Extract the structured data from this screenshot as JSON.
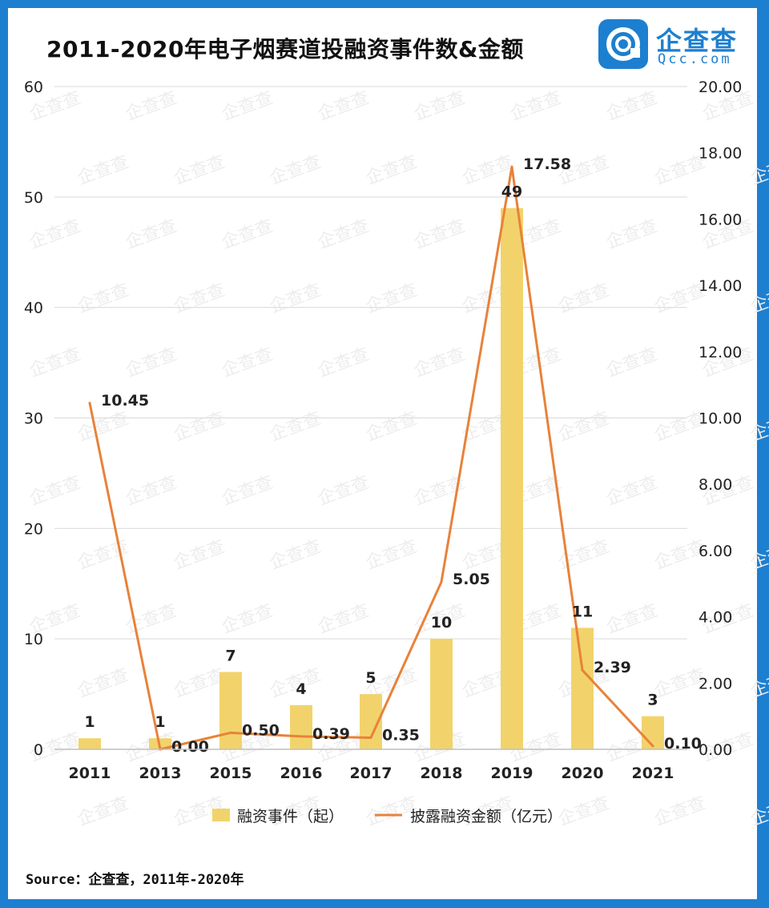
{
  "title": "2011-2020年电子烟赛道投融资事件数&金额",
  "logo": {
    "name": "企查查",
    "sub": "Qcc.com"
  },
  "watermark": "企查查",
  "source": "Source：企查查，2011年-2020年",
  "colors": {
    "bar": "#f2d36b",
    "line": "#e8823a",
    "frame": "#1d7fd0",
    "grid": "#d9d9d9"
  },
  "chart_data": {
    "type": "bar",
    "title": "2011-2020年电子烟赛道投融资事件数&金额",
    "categories": [
      "2011",
      "2013",
      "2015",
      "2016",
      "2017",
      "2018",
      "2019",
      "2020",
      "2021"
    ],
    "series": [
      {
        "name": "融资事件（起）",
        "type": "bar",
        "axis": "left",
        "values": [
          1,
          1,
          7,
          4,
          5,
          10,
          49,
          11,
          3
        ]
      },
      {
        "name": "披露融资金额（亿元）",
        "type": "line",
        "axis": "right",
        "values": [
          10.45,
          0.0,
          0.5,
          0.39,
          0.35,
          5.05,
          17.58,
          2.39,
          0.1
        ]
      }
    ],
    "bar_labels": [
      "1",
      "1",
      "7",
      "4",
      "5",
      "10",
      "49",
      "11",
      "3"
    ],
    "line_labels": [
      "10.45",
      "0.00",
      "0.50",
      "0.39",
      "0.35",
      "5.05",
      "17.58",
      "2.39",
      "0.10"
    ],
    "y_left": {
      "lim": [
        0,
        60
      ],
      "ticks": [
        "0",
        "10",
        "20",
        "30",
        "40",
        "50",
        "60"
      ]
    },
    "y_right": {
      "lim": [
        0,
        20
      ],
      "ticks": [
        "0.00",
        "2.00",
        "4.00",
        "6.00",
        "8.00",
        "10.00",
        "12.00",
        "14.00",
        "16.00",
        "18.00",
        "20.00"
      ]
    },
    "grid": true,
    "legend_position": "bottom"
  }
}
